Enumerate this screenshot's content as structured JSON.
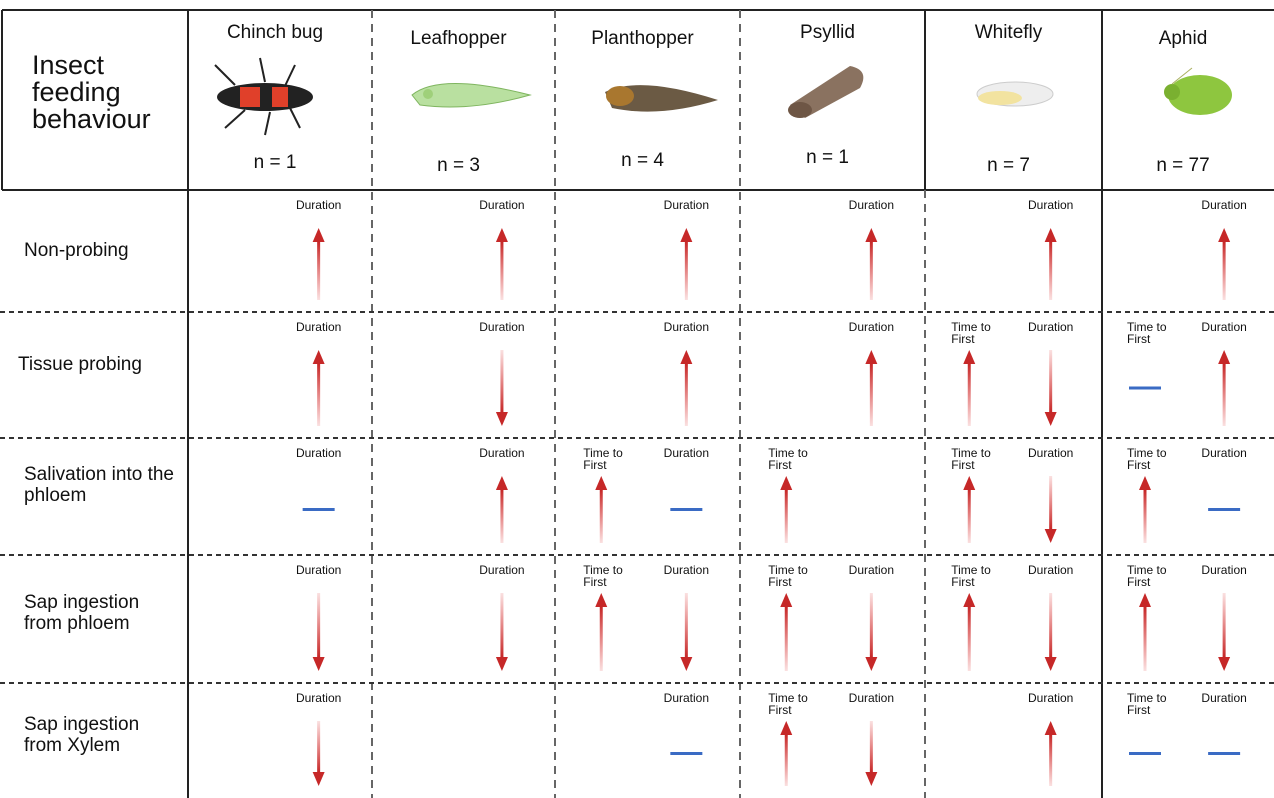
{
  "header": {
    "title": "Insect feeding behaviour",
    "columns": [
      {
        "name": "Chinch bug",
        "n": "n = 1"
      },
      {
        "name": "Leafhopper",
        "n": "n = 3"
      },
      {
        "name": "Planthopper",
        "n": "n = 4"
      },
      {
        "name": "Psyllid",
        "n": "n = 1"
      },
      {
        "name": "Whitefly",
        "n": "n = 7"
      },
      {
        "name": "Aphid",
        "n": "n = 77"
      }
    ]
  },
  "rows": [
    {
      "label": "Non-probing",
      "cells": [
        [
          "Duration"
        ],
        [
          "Duration"
        ],
        [
          "Duration"
        ],
        [
          "Duration"
        ],
        [
          "Duration"
        ],
        [
          "Duration"
        ]
      ]
    },
    {
      "label": "Tissue probing",
      "cells": [
        [
          "Duration"
        ],
        [
          "Duration"
        ],
        [
          "Duration"
        ],
        [
          "Duration"
        ],
        [
          "Time to First",
          "Duration"
        ],
        [
          "Time to First",
          "Duration"
        ]
      ]
    },
    {
      "label": "Salivation into the phloem",
      "cells": [
        [
          "Duration"
        ],
        [
          "Duration"
        ],
        [
          "Time to First",
          "Duration"
        ],
        [
          "Time to First"
        ],
        [
          "Time to First",
          "Duration"
        ],
        [
          "Time to First",
          "Duration"
        ]
      ]
    },
    {
      "label": "Sap ingestion from phloem",
      "cells": [
        [
          "Duration"
        ],
        [
          "Duration"
        ],
        [
          "Time to First",
          "Duration"
        ],
        [
          "Time to First",
          "Duration"
        ],
        [
          "Time to First",
          "Duration"
        ],
        [
          "Time to First",
          "Duration"
        ]
      ]
    },
    {
      "label": "Sap ingestion from Xylem",
      "cells": [
        [
          "Duration"
        ],
        [],
        [
          "Duration"
        ],
        [
          "Time to First",
          "Duration"
        ],
        [
          "Duration"
        ],
        [
          "Time to First",
          "Duration"
        ]
      ]
    }
  ]
}
